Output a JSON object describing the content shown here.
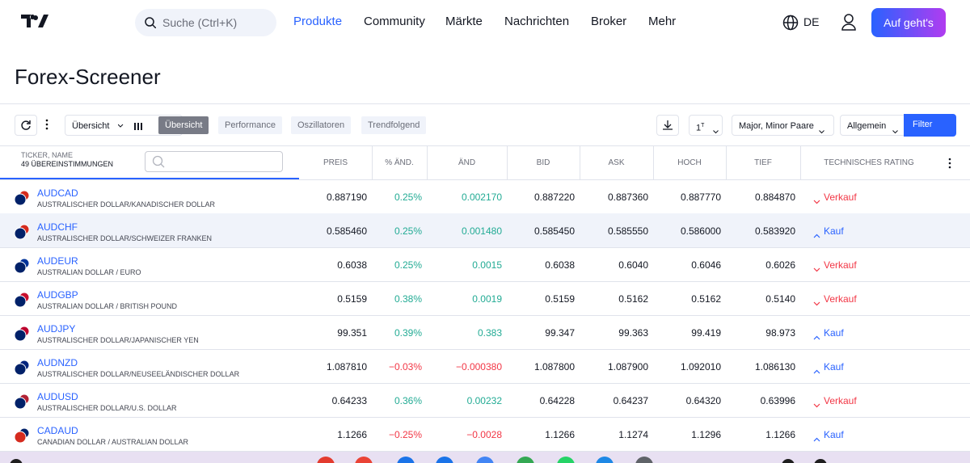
{
  "header": {
    "search": "Suche (Ctrl+K)",
    "nav": [
      "Produkte",
      "Community",
      "Märkte",
      "Nachrichten",
      "Broker",
      "Mehr"
    ],
    "language": "DE",
    "cta": "Auf geht's"
  },
  "title": "Forex-Screener",
  "toolbar": {
    "view": "Übersicht",
    "tabs": [
      "Übersicht",
      "Performance",
      "Oszillatoren",
      "Trendfolgend"
    ],
    "interval": {
      "number": "1",
      "unit": "T"
    },
    "market": "Major, Minor Paare",
    "column_set": "Allgemein",
    "filter": "Filter"
  },
  "table": {
    "ticker_header": "TICKER, NAME",
    "matches": "49 ÜBEREINSTIMMUNGEN",
    "columns": [
      "PREIS",
      "% ÄND.",
      "ÄND",
      "BID",
      "ASK",
      "HOCH",
      "TIEF",
      "TECHNISCHES RATING"
    ],
    "rows": [
      [
        "AUDCAD",
        "AUSTRALISCHER DOLLAR/KANADISCHER DOLLAR",
        "0.887190",
        "0.25%",
        "0.002170",
        "0.887220",
        "0.887360",
        "0.887770",
        "0.884870",
        "Verkauf"
      ],
      [
        "AUDCHF",
        "AUSTRALISCHER DOLLAR/SCHWEIZER FRANKEN",
        "0.585460",
        "0.25%",
        "0.001480",
        "0.585450",
        "0.585550",
        "0.586000",
        "0.583920",
        "Kauf"
      ],
      [
        "AUDEUR",
        "AUSTRALIAN DOLLAR / EURO",
        "0.6038",
        "0.25%",
        "0.0015",
        "0.6038",
        "0.6040",
        "0.6046",
        "0.6026",
        "Verkauf"
      ],
      [
        "AUDGBP",
        "AUSTRALIAN DOLLAR / BRITISH POUND",
        "0.5159",
        "0.38%",
        "0.0019",
        "0.5159",
        "0.5162",
        "0.5162",
        "0.5140",
        "Verkauf"
      ],
      [
        "AUDJPY",
        "AUSTRALISCHER DOLLAR/JAPANISCHER YEN",
        "99.351",
        "0.39%",
        "0.383",
        "99.347",
        "99.363",
        "99.419",
        "98.973",
        "Kauf"
      ],
      [
        "AUDNZD",
        "AUSTRALISCHER DOLLAR/NEUSEELÄNDISCHER DOLLAR",
        "1.087810",
        "−0.03%",
        "−0.000380",
        "1.087800",
        "1.087900",
        "1.092010",
        "1.086130",
        "Kauf"
      ],
      [
        "AUDUSD",
        "AUSTRALISCHER DOLLAR/U.S. DOLLAR",
        "0.64233",
        "0.36%",
        "0.00232",
        "0.64228",
        "0.64237",
        "0.64320",
        "0.63996",
        "Verkauf"
      ],
      [
        "CADAUD",
        "CANADIAN DOLLAR / AUSTRALIAN DOLLAR",
        "1.1266",
        "−0.25%",
        "−0.0028",
        "1.1266",
        "1.1274",
        "1.1296",
        "1.1266",
        "Kauf"
      ]
    ]
  }
}
